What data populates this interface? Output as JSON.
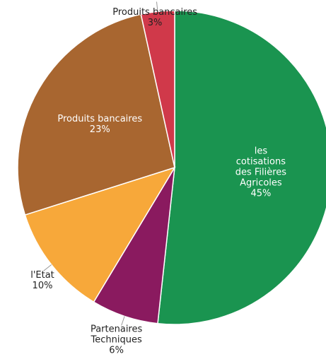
{
  "chart_data": {
    "type": "pie",
    "categories": [
      "les cotisations des Filières Agricoles",
      "Partenaires Techniques",
      "l'Etat",
      "Produits bancaires",
      "Produits bancaires"
    ],
    "values": [
      45,
      6,
      10,
      23,
      3
    ],
    "value_labels": [
      "45%",
      "6%",
      "10%",
      "23%",
      "3%"
    ],
    "colors": [
      "#1a9450",
      "#8a1a5f",
      "#f7a83a",
      "#a86630",
      "#d0394a"
    ]
  }
}
